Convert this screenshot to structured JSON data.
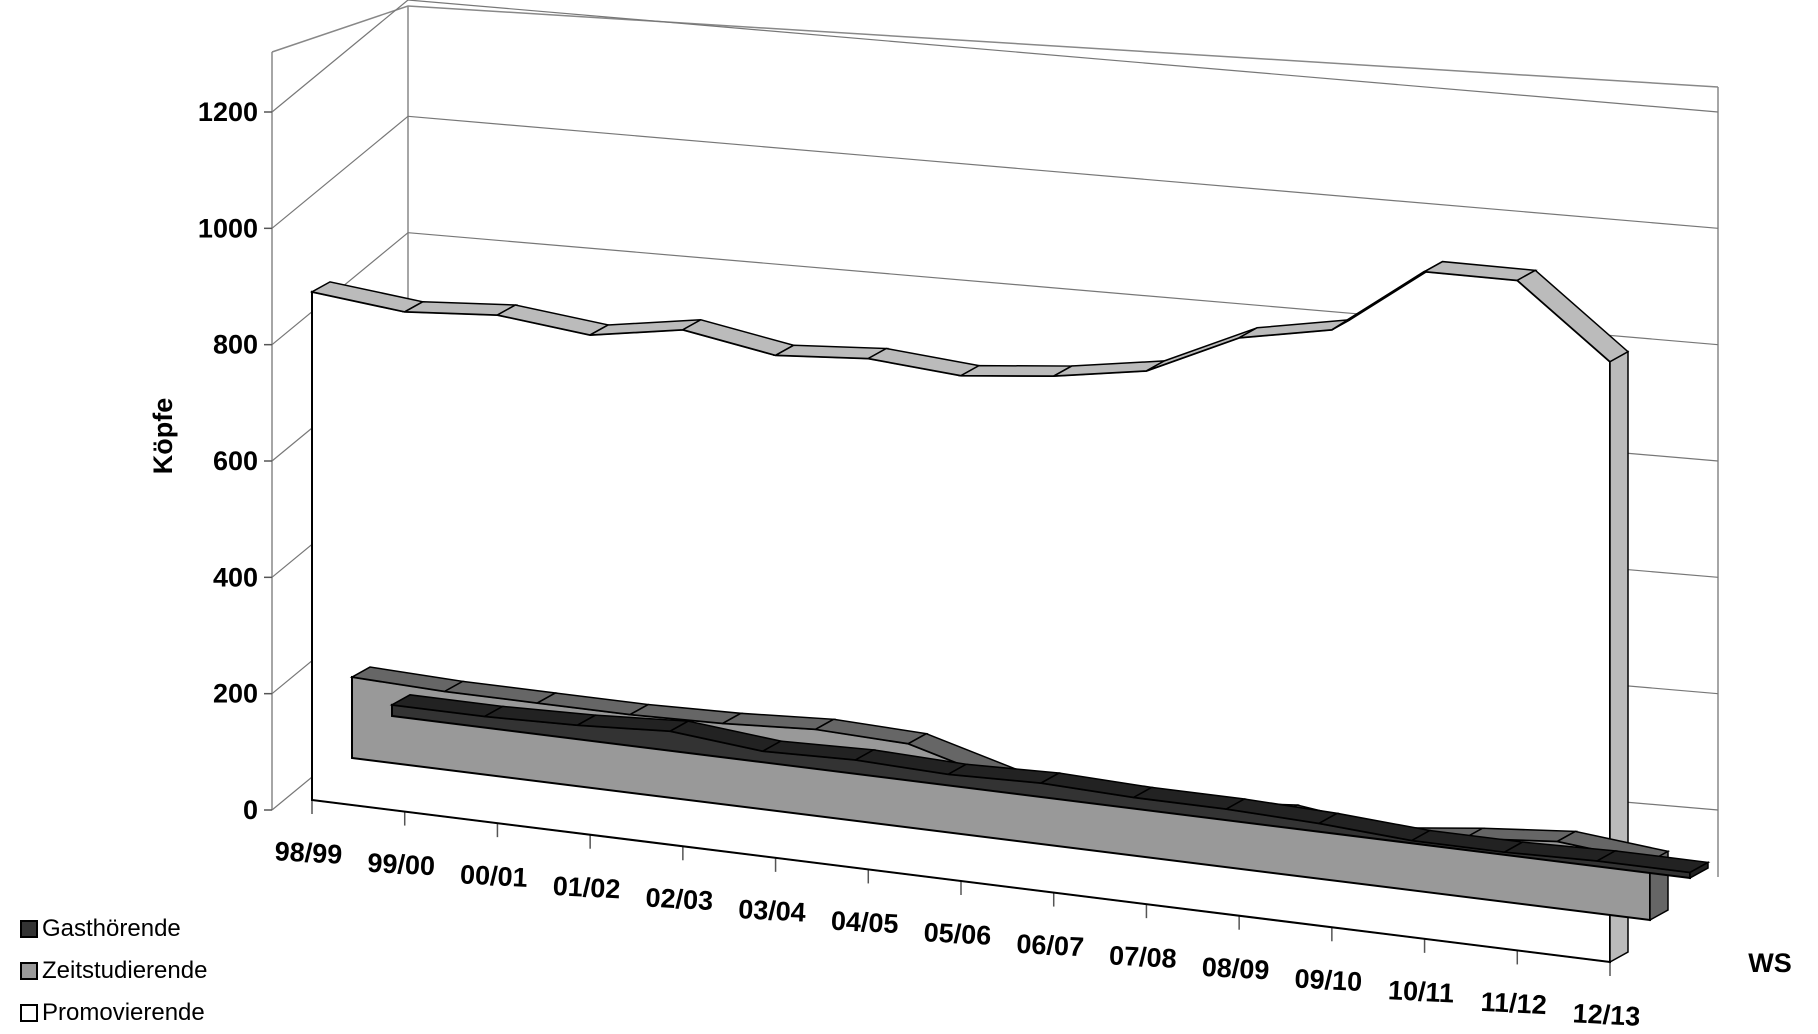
{
  "chart_data": {
    "type": "area",
    "variant": "3d-ribbon",
    "ylabel": "Köpfe",
    "xlabel": "WS",
    "ylim": [
      0,
      1200
    ],
    "yticks": [
      "0",
      "200",
      "400",
      "600",
      "800",
      "1000",
      "1200"
    ],
    "categories": [
      "98/99",
      "99/00",
      "00/01",
      "01/02",
      "02/03",
      "03/04",
      "04/05",
      "05/06",
      "06/07",
      "07/08",
      "08/09",
      "09/10",
      "10/11",
      "11/12",
      "12/13"
    ],
    "grid": true,
    "legend_position": "bottom-left",
    "series": [
      {
        "name": "Gasthörende",
        "color": "#333333",
        "values": [
          20,
          20,
          25,
          35,
          20,
          25,
          20,
          25,
          20,
          20,
          15,
          5,
          5,
          10,
          10
        ]
      },
      {
        "name": "Zeitstudierende",
        "color": "#999999",
        "values": [
          145,
          140,
          140,
          140,
          145,
          155,
          150,
          105,
          105,
          90,
          105,
          85,
          105,
          120,
          105
        ]
      },
      {
        "name": "Promovierende",
        "color": "#ffffff",
        "values": [
          910,
          895,
          910,
          895,
          925,
          900,
          915,
          905,
          925,
          955,
          1035,
          1070,
          1195,
          1200,
          1075
        ]
      }
    ]
  }
}
